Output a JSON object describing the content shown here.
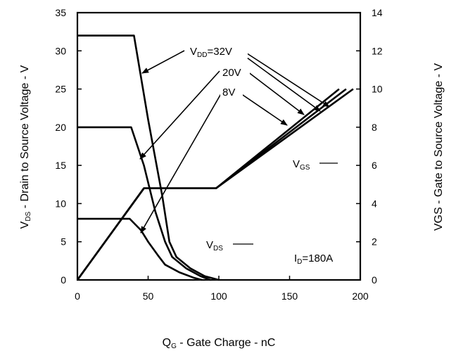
{
  "chart_data": {
    "type": "line",
    "title": "",
    "x_axis": {
      "label_main": "Q",
      "label_sub": "G",
      "label_rest": " - Gate Charge - nC",
      "range": [
        0,
        200
      ],
      "ticks": [
        0,
        50,
        100,
        150,
        200
      ]
    },
    "y_axis_left": {
      "label_main": "V",
      "label_sub": "DS",
      "label_rest": " - Drain to Source Voltage - V",
      "range": [
        0,
        35
      ],
      "ticks": [
        0,
        5,
        10,
        15,
        20,
        25,
        30,
        35
      ]
    },
    "y_axis_right": {
      "label": "VGS - Gate to Source Voltage - V",
      "range": [
        0,
        14
      ],
      "ticks": [
        0,
        2,
        4,
        6,
        8,
        10,
        12,
        14
      ]
    },
    "grid": false,
    "series": [
      {
        "name": "VDD=32V",
        "axis": "left",
        "kind": "VDS",
        "x": [
          0,
          40,
          50,
          60,
          65,
          70,
          80,
          90,
          100
        ],
        "y": [
          32,
          32,
          21,
          11,
          5,
          3,
          1.5,
          0.5,
          0
        ]
      },
      {
        "name": "VDD=20V",
        "axis": "left",
        "kind": "VDS",
        "x": [
          0,
          38,
          47,
          55,
          62,
          67,
          77,
          87,
          94
        ],
        "y": [
          20,
          20,
          15,
          9,
          5,
          3,
          1.5,
          0.5,
          0
        ]
      },
      {
        "name": "VDD=8V",
        "axis": "left",
        "kind": "VDS",
        "x": [
          0,
          37,
          45,
          50,
          57,
          62,
          72,
          82,
          88
        ],
        "y": [
          8,
          8,
          6.5,
          5,
          3.2,
          2,
          1,
          0.3,
          0
        ]
      },
      {
        "name": "VGS (VDD=8V)",
        "axis": "right",
        "kind": "VGS",
        "x": [
          0,
          47,
          83,
          98,
          185
        ],
        "y": [
          0,
          4.8,
          4.8,
          4.8,
          10
        ]
      },
      {
        "name": "VGS (VDD=20V)",
        "axis": "right",
        "kind": "VGS",
        "x": [
          0,
          47,
          85,
          98,
          190
        ],
        "y": [
          0,
          4.8,
          4.8,
          4.8,
          10
        ]
      },
      {
        "name": "VGS (VDD=32V)",
        "axis": "right",
        "kind": "VGS",
        "x": [
          0,
          47,
          85,
          98,
          195
        ],
        "y": [
          0,
          4.8,
          4.8,
          4.8,
          10
        ]
      }
    ],
    "annotations": {
      "vdd_main": "V",
      "vdd_sub": "DD",
      "vdd_rest": "=32V",
      "label_20v": "20V",
      "label_8v": "8V",
      "vgs_main": "V",
      "vgs_sub": "GS",
      "vds_main": "V",
      "vds_sub": "DS",
      "id_main": "I",
      "id_sub": "D",
      "id_rest": "=180A"
    }
  }
}
